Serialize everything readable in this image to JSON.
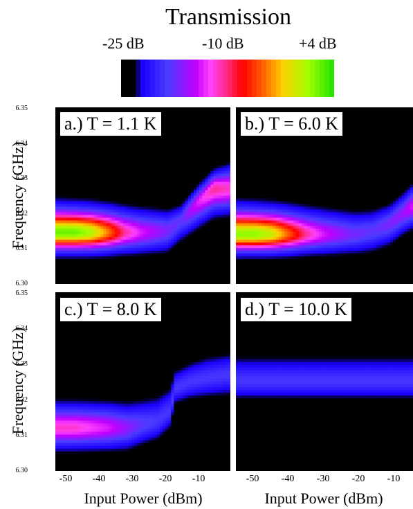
{
  "colorbar": {
    "title": "Transmission",
    "labels": [
      "-25 dB",
      "-10 dB",
      "+4 dB"
    ],
    "range_db": [
      -25,
      4
    ],
    "stops": [
      {
        "pos": 0.0,
        "color": "#000000"
      },
      {
        "pos": 0.06,
        "color": "#000000"
      },
      {
        "pos": 0.1,
        "color": "#1a00ff"
      },
      {
        "pos": 0.22,
        "color": "#4a3cff"
      },
      {
        "pos": 0.35,
        "color": "#c000ff"
      },
      {
        "pos": 0.42,
        "color": "#ff40ff"
      },
      {
        "pos": 0.5,
        "color": "#ff2a7a"
      },
      {
        "pos": 0.57,
        "color": "#ff0000"
      },
      {
        "pos": 0.66,
        "color": "#ff5a00"
      },
      {
        "pos": 0.76,
        "color": "#ffd000"
      },
      {
        "pos": 0.88,
        "color": "#a0ff00"
      },
      {
        "pos": 1.0,
        "color": "#20e000"
      }
    ]
  },
  "axes": {
    "ylabel": "Frequency (GHz)",
    "xlabel": "Input Power (dBm)",
    "yticks_top": [
      "6.35",
      "6.34",
      "6.33",
      "6.32",
      "6.31",
      "6.30"
    ],
    "yticks_bottom": [
      "6.35",
      "6.34",
      "6.33",
      "6.32",
      "6.31",
      "6.30"
    ],
    "xticks": [
      "-50",
      "-40",
      "-30",
      "-20",
      "-10"
    ]
  },
  "chart_data": [
    {
      "type": "heatmap",
      "title": "a.) T = 1.1 K",
      "xlabel": "",
      "ylabel": "Frequency (GHz)",
      "xlim": [
        -56,
        -3
      ],
      "ylim": [
        6.3,
        6.35
      ],
      "xticks": [
        -50,
        -40,
        -30,
        -20,
        -10
      ],
      "yticks": [
        6.3,
        6.31,
        6.32,
        6.33,
        6.34,
        6.35
      ],
      "series": [
        {
          "name": "upper_edge_ghz",
          "x": [
            -56,
            -40,
            -30,
            -22,
            -18,
            -13,
            -8,
            -3
          ],
          "y": [
            6.33,
            6.329,
            6.328,
            6.327,
            6.327,
            6.332,
            6.337,
            6.34
          ]
        },
        {
          "name": "lower_edge_ghz",
          "x": [
            -56,
            -40,
            -30,
            -22,
            -18,
            -13,
            -8,
            -3
          ],
          "y": [
            6.303,
            6.303,
            6.303,
            6.303,
            6.306,
            6.309,
            6.312,
            6.313
          ]
        },
        {
          "name": "resonance_ghz",
          "x": [
            -56,
            -40,
            -30,
            -22,
            -18,
            -13,
            -8,
            -3
          ],
          "y": [
            6.3145,
            6.3145,
            6.3145,
            6.315,
            6.318,
            6.323,
            6.327,
            6.327
          ]
        },
        {
          "name": "peak_transmission_db",
          "x": [
            -56,
            -50,
            -45,
            -40,
            -35,
            -30,
            -22,
            -18,
            -13,
            -8,
            -3
          ],
          "y": [
            2,
            2,
            0,
            -5,
            -11,
            -14,
            -17,
            -18,
            -14,
            -11,
            -12
          ]
        }
      ]
    },
    {
      "type": "heatmap",
      "title": "b.) T = 6.0 K",
      "xlabel": "",
      "ylabel": "",
      "xlim": [
        -56,
        -3
      ],
      "ylim": [
        6.3,
        6.35
      ],
      "xticks": [
        -50,
        -40,
        -30,
        -20,
        -10
      ],
      "yticks": [
        6.3,
        6.31,
        6.32,
        6.33,
        6.34,
        6.35
      ],
      "series": [
        {
          "name": "upper_edge_ghz",
          "x": [
            -56,
            -40,
            -30,
            -20,
            -15,
            -10,
            -6,
            -3
          ],
          "y": [
            6.33,
            6.329,
            6.328,
            6.327,
            6.327,
            6.328,
            6.331,
            6.334
          ]
        },
        {
          "name": "lower_edge_ghz",
          "x": [
            -56,
            -40,
            -30,
            -20,
            -15,
            -10,
            -6,
            -3
          ],
          "y": [
            6.303,
            6.303,
            6.303,
            6.303,
            6.303,
            6.305,
            6.308,
            6.31
          ]
        },
        {
          "name": "resonance_ghz",
          "x": [
            -56,
            -40,
            -30,
            -20,
            -15,
            -10,
            -6,
            -3
          ],
          "y": [
            6.314,
            6.314,
            6.314,
            6.314,
            6.315,
            6.317,
            6.32,
            6.322
          ]
        },
        {
          "name": "peak_transmission_db",
          "x": [
            -56,
            -50,
            -45,
            -40,
            -35,
            -30,
            -22,
            -15,
            -10,
            -6,
            -3
          ],
          "y": [
            1,
            1,
            -1,
            -6,
            -11,
            -14,
            -17,
            -18,
            -17,
            -16,
            -14
          ]
        }
      ]
    },
    {
      "type": "heatmap",
      "title": "c.) T = 8.0 K",
      "xlabel": "Input Power (dBm)",
      "ylabel": "Frequency (GHz)",
      "xlim": [
        -56,
        -3
      ],
      "ylim": [
        6.3,
        6.35
      ],
      "xticks": [
        -50,
        -40,
        -30,
        -20,
        -10
      ],
      "yticks": [
        6.3,
        6.31,
        6.32,
        6.33,
        6.34,
        6.35
      ],
      "series": [
        {
          "name": "upper_edge_ghz",
          "x": [
            -56,
            -40,
            -34,
            -25,
            -21,
            -20,
            -15,
            -10,
            -3
          ],
          "y": [
            6.326,
            6.326,
            6.326,
            6.328,
            6.33,
            6.333,
            6.336,
            6.338,
            6.339
          ]
        },
        {
          "name": "lower_edge_ghz",
          "x": [
            -56,
            -40,
            -34,
            -25,
            -21,
            -20,
            -15,
            -10,
            -3
          ],
          "y": [
            6.3,
            6.3,
            6.3,
            6.303,
            6.307,
            6.314,
            6.315,
            6.315,
            6.315
          ]
        },
        {
          "name": "resonance_ghz",
          "x": [
            -56,
            -40,
            -34,
            -25,
            -21,
            -20,
            -15,
            -10,
            -3
          ],
          "y": [
            6.312,
            6.312,
            6.312,
            6.314,
            6.317,
            6.323,
            6.325,
            6.326,
            6.327
          ]
        },
        {
          "name": "peak_transmission_db",
          "x": [
            -56,
            -50,
            -45,
            -40,
            -35,
            -30,
            -25,
            -20,
            -15,
            -10,
            -3
          ],
          "y": [
            -12,
            -12,
            -13,
            -14,
            -16,
            -18,
            -19,
            -19,
            -19,
            -19,
            -19
          ]
        }
      ]
    },
    {
      "type": "heatmap",
      "title": "d.) T = 10.0 K",
      "xlabel": "Input Power (dBm)",
      "ylabel": "",
      "xlim": [
        -56,
        -3
      ],
      "ylim": [
        6.3,
        6.35
      ],
      "xticks": [
        -50,
        -40,
        -30,
        -20,
        -10
      ],
      "yticks": [
        6.3,
        6.31,
        6.32,
        6.33,
        6.34,
        6.35
      ],
      "series": [
        {
          "name": "upper_edge_ghz",
          "x": [
            -56,
            -40,
            -30,
            -20,
            -10,
            -3
          ],
          "y": [
            6.339,
            6.339,
            6.339,
            6.339,
            6.339,
            6.339
          ]
        },
        {
          "name": "lower_edge_ghz",
          "x": [
            -56,
            -40,
            -30,
            -20,
            -10,
            -3
          ],
          "y": [
            6.315,
            6.315,
            6.315,
            6.315,
            6.315,
            6.315
          ]
        },
        {
          "name": "resonance_ghz",
          "x": [
            -56,
            -40,
            -30,
            -20,
            -10,
            -3
          ],
          "y": [
            6.325,
            6.325,
            6.325,
            6.325,
            6.325,
            6.325
          ]
        },
        {
          "name": "peak_transmission_db",
          "x": [
            -56,
            -40,
            -30,
            -20,
            -10,
            -3
          ],
          "y": [
            -19,
            -19,
            -19,
            -19,
            -19,
            -19
          ]
        }
      ]
    }
  ]
}
